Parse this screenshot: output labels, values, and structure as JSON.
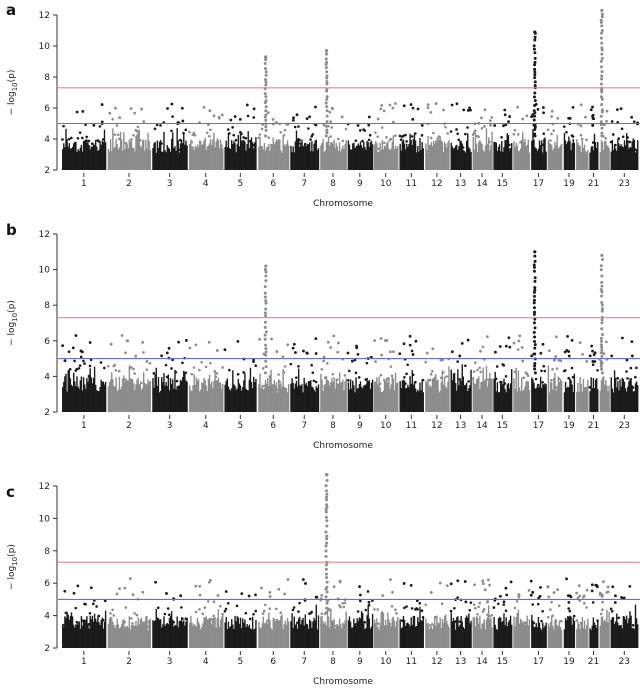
{
  "figure": {
    "panel_labels": [
      "a",
      "b",
      "c"
    ]
  },
  "chart_data": [
    {
      "type": "scatter",
      "panel": "a",
      "title": "",
      "xlabel": "Chromosome",
      "ylabel_prefix": "− log",
      "ylabel_sub": "10",
      "ylabel_suffix": "(p)",
      "ylim": [
        2,
        12
      ],
      "yticks": [
        2,
        4,
        6,
        8,
        10,
        12
      ],
      "x_tick_labels": [
        "1",
        "2",
        "3",
        "4",
        "5",
        "6",
        "7",
        "8",
        "9",
        "10",
        "11",
        "12",
        "13",
        "14",
        "15",
        "17",
        "19",
        "21",
        "23"
      ],
      "genome_wide_threshold": 7.3,
      "suggestive_threshold": 5.0,
      "chromosomes": [
        1,
        2,
        3,
        4,
        5,
        6,
        7,
        8,
        9,
        10,
        11,
        12,
        13,
        14,
        15,
        16,
        17,
        18,
        19,
        20,
        21,
        22,
        23
      ],
      "peaks": [
        {
          "chromosome": 6,
          "max": 9.3
        },
        {
          "chromosome": 8,
          "max": 9.7
        },
        {
          "chromosome": 17,
          "max": 10.9
        },
        {
          "chromosome": 22,
          "max": 12.3
        }
      ]
    },
    {
      "type": "scatter",
      "panel": "b",
      "title": "",
      "xlabel": "Chromosome",
      "ylabel_prefix": "− log",
      "ylabel_sub": "10",
      "ylabel_suffix": "(p)",
      "ylim": [
        2,
        12
      ],
      "yticks": [
        2,
        4,
        6,
        8,
        10,
        12
      ],
      "x_tick_labels": [
        "1",
        "2",
        "3",
        "4",
        "5",
        "6",
        "7",
        "8",
        "9",
        "10",
        "11",
        "12",
        "13",
        "14",
        "15",
        "17",
        "19",
        "21",
        "23"
      ],
      "genome_wide_threshold": 7.3,
      "suggestive_threshold": 5.0,
      "chromosomes": [
        1,
        2,
        3,
        4,
        5,
        6,
        7,
        8,
        9,
        10,
        11,
        12,
        13,
        14,
        15,
        16,
        17,
        18,
        19,
        20,
        21,
        22,
        23
      ],
      "peaks": [
        {
          "chromosome": 6,
          "max": 10.2
        },
        {
          "chromosome": 17,
          "max": 11.0
        },
        {
          "chromosome": 22,
          "max": 10.8
        }
      ]
    },
    {
      "type": "scatter",
      "panel": "c",
      "title": "",
      "xlabel": "Chromosome",
      "ylabel_prefix": "− log",
      "ylabel_sub": "10",
      "ylabel_suffix": "(p)",
      "ylim": [
        2,
        12
      ],
      "yticks": [
        2,
        4,
        6,
        8,
        10,
        12
      ],
      "x_tick_labels": [
        "1",
        "2",
        "3",
        "4",
        "5",
        "6",
        "7",
        "8",
        "9",
        "10",
        "11",
        "12",
        "13",
        "14",
        "15",
        "17",
        "19",
        "21",
        "23"
      ],
      "genome_wide_threshold": 7.3,
      "suggestive_threshold": 5.0,
      "chromosomes": [
        1,
        2,
        3,
        4,
        5,
        6,
        7,
        8,
        9,
        10,
        11,
        12,
        13,
        14,
        15,
        16,
        17,
        18,
        19,
        20,
        21,
        22,
        23
      ],
      "peaks": [
        {
          "chromosome": 8,
          "max": 12.7
        }
      ]
    }
  ],
  "colors": {
    "odd_chromosome": "#1a1a1a",
    "even_chromosome": "#8c8c8c",
    "genome_wide_line": "#e8848a",
    "suggestive_line": "#6a6ae0"
  }
}
